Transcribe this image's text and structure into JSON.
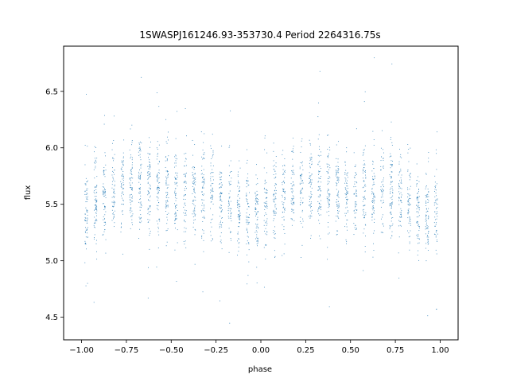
{
  "chart_data": {
    "type": "scatter",
    "title": "1SWASPJ161246.93-353730.4 Period 2264316.75s",
    "xlabel": "phase",
    "ylabel": "flux",
    "xlim": [
      -1.1,
      1.1
    ],
    "ylim": [
      4.3,
      6.9
    ],
    "xticks": [
      -1.0,
      -0.75,
      -0.5,
      -0.25,
      0.0,
      0.25,
      0.5,
      0.75,
      1.0
    ],
    "xtick_labels": [
      "−1.00",
      "−0.75",
      "−0.50",
      "−0.25",
      "0.00",
      "0.25",
      "0.50",
      "0.75",
      "1.00"
    ],
    "yticks": [
      4.5,
      5.0,
      5.5,
      6.0,
      6.5
    ],
    "ytick_labels": [
      "4.5",
      "5.0",
      "5.5",
      "6.0",
      "6.5"
    ],
    "grid": false,
    "marker_color": "#1f77b4",
    "phase_range": [
      -1.0,
      1.0
    ],
    "flux_center": 5.6,
    "flux_spread": 0.2,
    "flux_min": 4.45,
    "flux_max": 6.8,
    "profile_phase": [
      0.0,
      0.1,
      0.2,
      0.3,
      0.4,
      0.5,
      0.6,
      0.7,
      0.8,
      0.9,
      1.0
    ],
    "profile_flux": [
      5.42,
      5.55,
      5.65,
      5.7,
      5.62,
      5.58,
      5.56,
      5.62,
      5.55,
      5.45,
      5.42
    ]
  }
}
